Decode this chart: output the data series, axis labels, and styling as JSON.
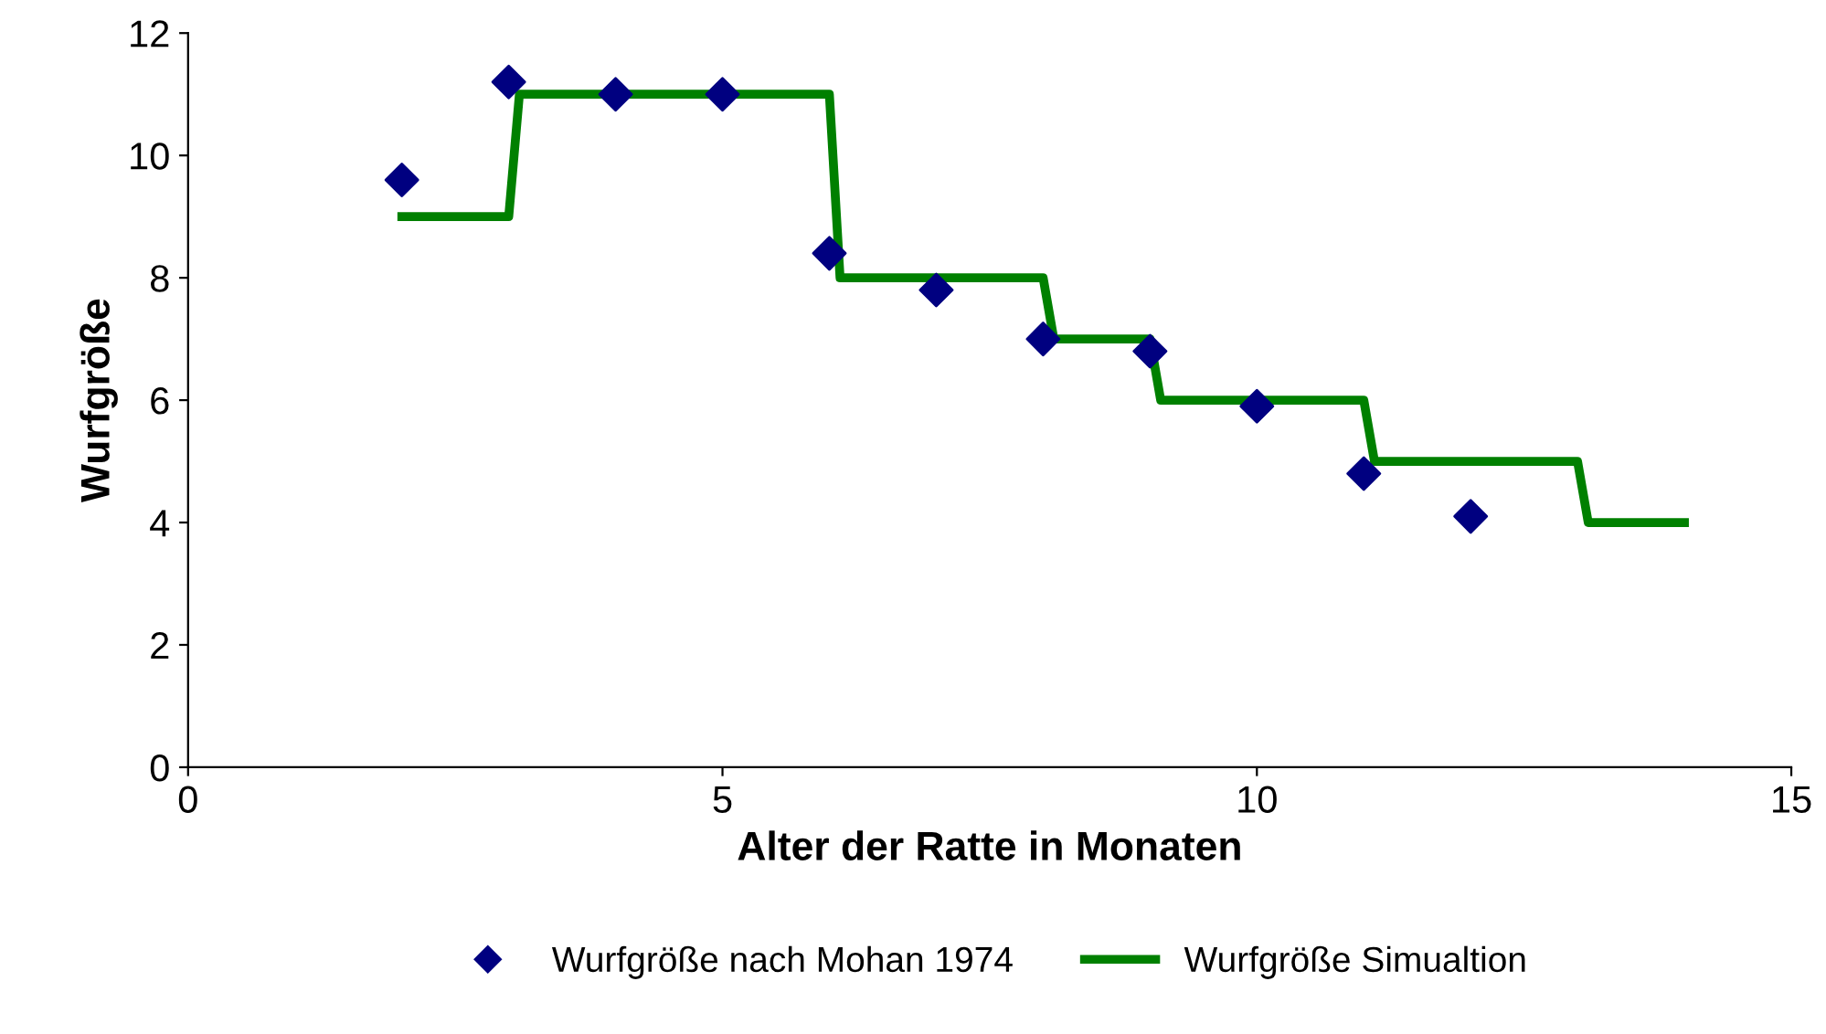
{
  "chart_data": {
    "type": "scatter",
    "xlabel": "Alter der Ratte in Monaten",
    "ylabel": "Wurfgröße",
    "xlim": [
      0,
      15
    ],
    "xticks": [
      0,
      5,
      10,
      15
    ],
    "ylim": [
      0,
      12
    ],
    "yticks": [
      0,
      2,
      4,
      6,
      8,
      10,
      12
    ],
    "grid": false,
    "legend": "bottom",
    "series": [
      {
        "name": "Wurfgröße nach Mohan 1974",
        "marker": "diamond",
        "color": "#000080",
        "x": [
          2,
          3,
          4,
          5,
          6,
          7,
          8,
          9,
          10,
          11,
          12
        ],
        "values": [
          9.6,
          11.2,
          11,
          11,
          8.4,
          7.8,
          7.0,
          6.8,
          5.9,
          4.8,
          4.1
        ]
      },
      {
        "name": "Wurfgröße Simualtion",
        "type": "line",
        "marker": "none",
        "line_style": "solid",
        "color": "#008000",
        "x": [
          2,
          3,
          3.1,
          6,
          6.1,
          8,
          8.1,
          9,
          9.1,
          11,
          11.1,
          13,
          13.1,
          14
        ],
        "values": [
          9,
          9,
          11,
          11,
          8,
          8,
          7,
          7,
          6,
          6,
          5,
          5,
          4,
          4
        ]
      }
    ]
  }
}
